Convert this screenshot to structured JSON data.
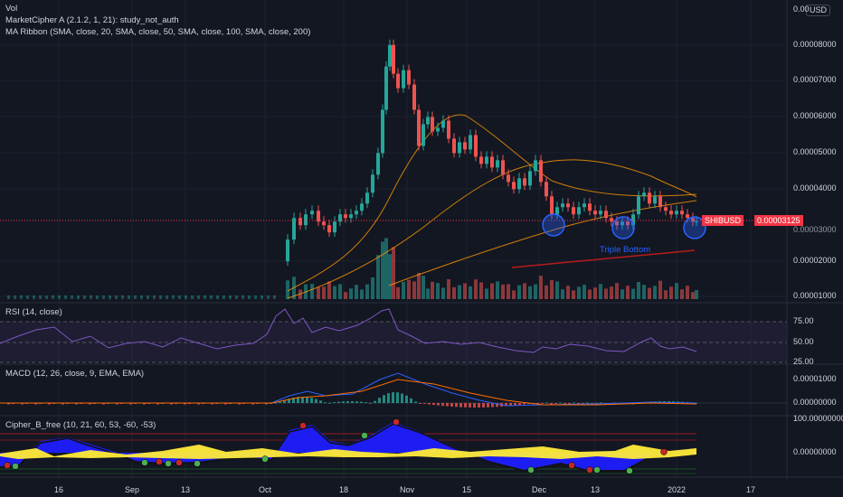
{
  "legend": {
    "vol": "Vol",
    "marketcipher": "MarketCipher A (2.1.2, 1, 21): study_not_auth",
    "maribbon": "MA Ribbon (SMA, close, 20, SMA, close, 50, SMA, close, 100, SMA, close, 200)"
  },
  "panes": {
    "rsi_label": "RSI (14, close)",
    "macd_label": "MACD (12, 26, close, 9, EMA, EMA)",
    "cipher_label": "Cipher_B_free (10, 21, 60, 53, -60, -53)"
  },
  "price_axis": {
    "currency": "USD",
    "top_label": "0.00",
    "ticks": [
      "0.00008000",
      "0.00007000",
      "0.00006000",
      "0.00005000",
      "0.00004000",
      "0.00002000",
      "0.00001000"
    ],
    "symbol_tag": "SHIBUSD",
    "last_price": "0.00003125",
    "hidden_tick": "0.00003000"
  },
  "rsi_axis": {
    "ticks": [
      "75.00",
      "50.00",
      "25.00"
    ]
  },
  "macd_axis": {
    "ticks": [
      "0.00001000",
      "0.00000000"
    ]
  },
  "cipher_axis": {
    "ticks": [
      "100.00000000",
      "0.00000000"
    ]
  },
  "time_axis": {
    "labels": [
      "16",
      "Sep",
      "13",
      "Oct",
      "18",
      "Nov",
      "15",
      "Dec",
      "13",
      "2022",
      "17"
    ]
  },
  "annotation": {
    "text": "Triple Bottom"
  },
  "colors": {
    "background": "#131722",
    "up": "#26a69a",
    "down": "#ef5350",
    "price_line": "#f23645",
    "rsi": "#7e57c2",
    "macd": "#2962ff",
    "signal": "#ff6d00",
    "wave": "#1e1eff",
    "money_flow": "#ffeb3b",
    "ma": "#ff9800",
    "trendline": "#b71c1c",
    "circle": "#2962ff"
  }
}
